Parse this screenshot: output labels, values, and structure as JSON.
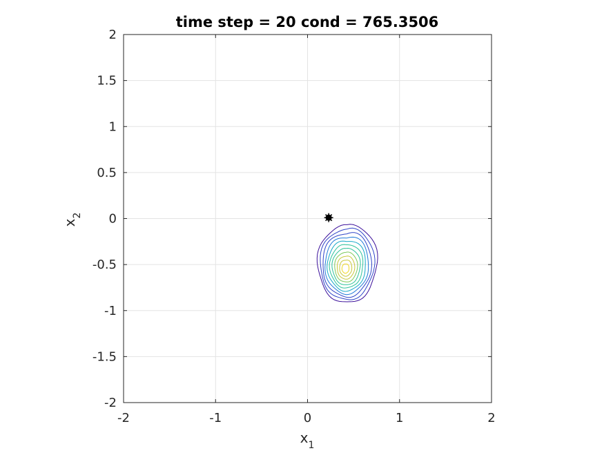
{
  "chart_data": {
    "type": "contour",
    "title": "time step = 20 cond = 765.3506",
    "xlabel": {
      "base": "x",
      "sub": "1"
    },
    "ylabel": {
      "base": "x",
      "sub": "2"
    },
    "xlim": [
      -2,
      2
    ],
    "ylim": [
      -2,
      2
    ],
    "xticks": [
      -2,
      -1,
      0,
      1,
      2
    ],
    "yticks": [
      -2,
      -1.5,
      -1,
      -0.5,
      0,
      0.5,
      1,
      1.5,
      2
    ],
    "xtick_labels": [
      "-2",
      "-1",
      "0",
      "1",
      "2"
    ],
    "ytick_labels": [
      "-2",
      "-1.5",
      "-1",
      "-0.5",
      "0",
      "0.5",
      "1",
      "1.5",
      "2"
    ],
    "grid": true,
    "colormap": [
      "#3b0f9a",
      "#2f44c8",
      "#1f78d8",
      "#14a8c8",
      "#2cc29a",
      "#7cc95a",
      "#c8c83a",
      "#f0d820"
    ],
    "density": {
      "center": [
        0.43,
        -0.52
      ],
      "levels": 11
    },
    "marker": {
      "x": 0.23,
      "y": 0.01,
      "label": ""
    }
  }
}
